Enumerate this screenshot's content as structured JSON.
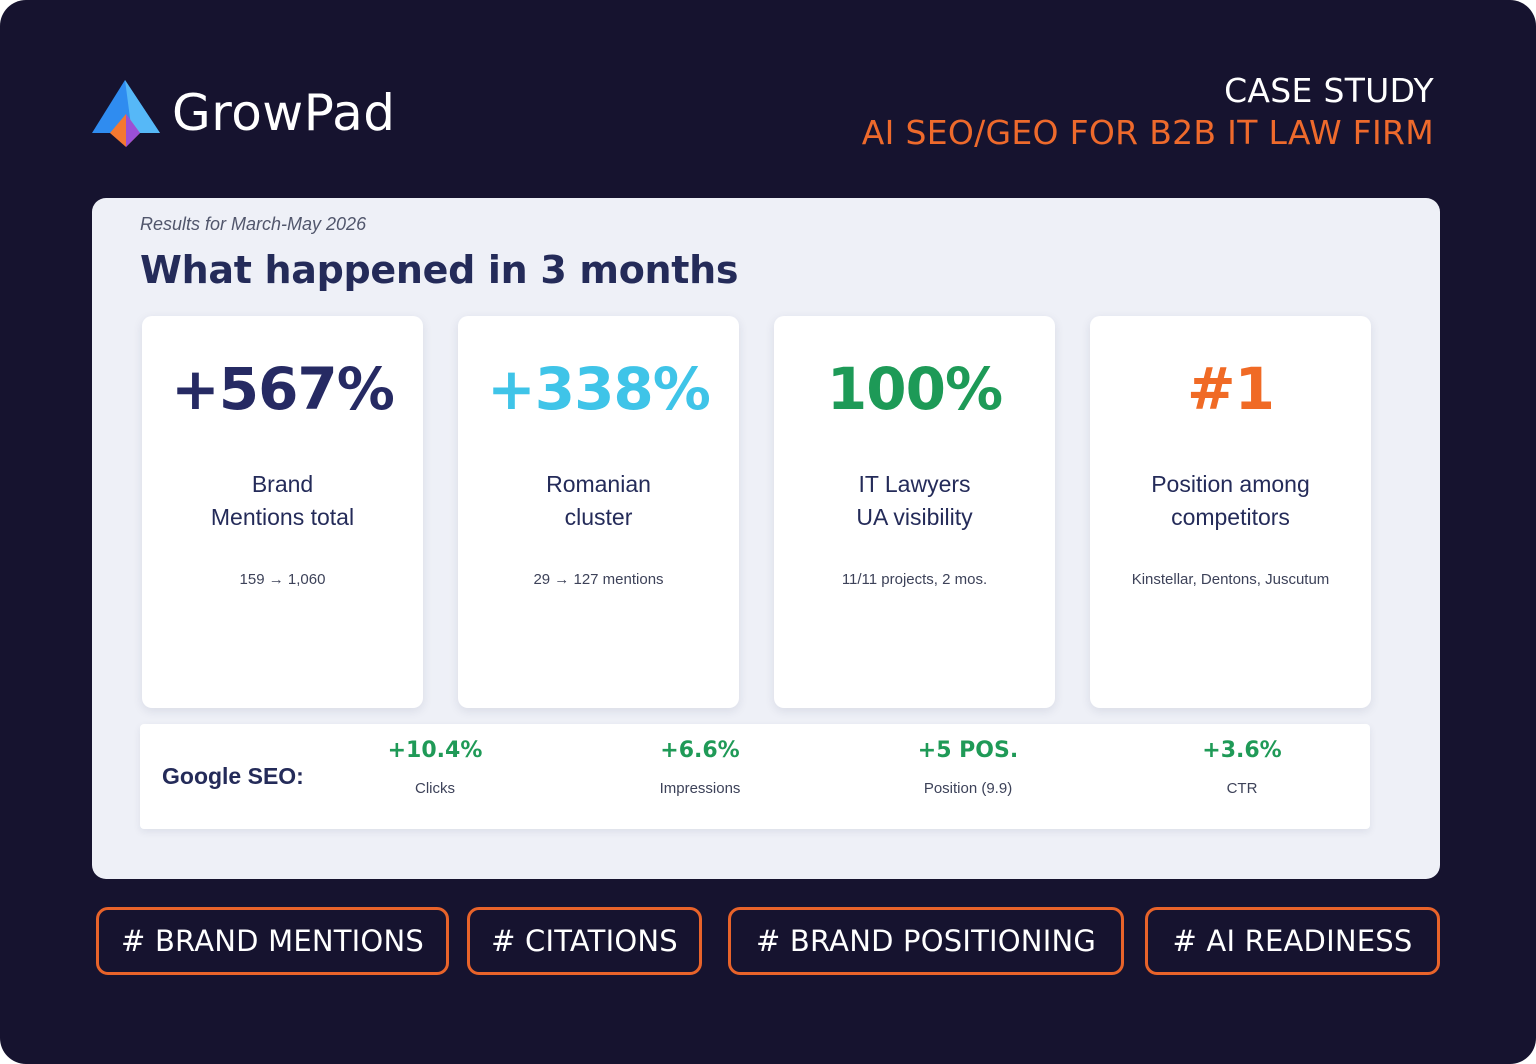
{
  "brand": {
    "name": "GrowPad"
  },
  "header": {
    "title": "CASE STUDY",
    "subtitle": "AI SEO/GEO FOR B2B IT LAW FIRM"
  },
  "panel": {
    "period": "Results for March-May 2026",
    "headline": "What happened in 3 months",
    "cards": [
      {
        "value": "+567%",
        "label_line1": "Brand",
        "label_line2": "Mentions total",
        "detail": "159 → 1,060",
        "color": "#262a63"
      },
      {
        "value": "+338%",
        "label_line1": "Romanian",
        "label_line2": "cluster",
        "detail": "29 → 127 mentions",
        "color": "#3fc4e8"
      },
      {
        "value": "100%",
        "label_line1": "IT Lawyers",
        "label_line2": "UA visibility",
        "detail": "11/11 projects, 2 mos.",
        "color": "#1d9a57"
      },
      {
        "value": "#1",
        "label_line1": "Position among",
        "label_line2": "competitors",
        "detail": "Kinstellar, Dentons, Juscutum",
        "color": "#f06a25"
      }
    ],
    "seo": {
      "label": "Google SEO:",
      "metrics": [
        {
          "value": "+10.4%",
          "label": "Clicks"
        },
        {
          "value": "+6.6%",
          "label": "Impressions"
        },
        {
          "value": "+5 POS.",
          "label": "Position (9.9)"
        },
        {
          "value": "+3.6%",
          "label": "CTR"
        }
      ]
    }
  },
  "tags": [
    "# BRAND MENTIONS",
    "# CITATIONS",
    "# BRAND POSITIONING",
    "# AI READINESS"
  ],
  "colors": {
    "background": "#16132f",
    "accent": "#ee6a2c",
    "positive": "#1f9a57",
    "text_dark": "#242b59"
  }
}
